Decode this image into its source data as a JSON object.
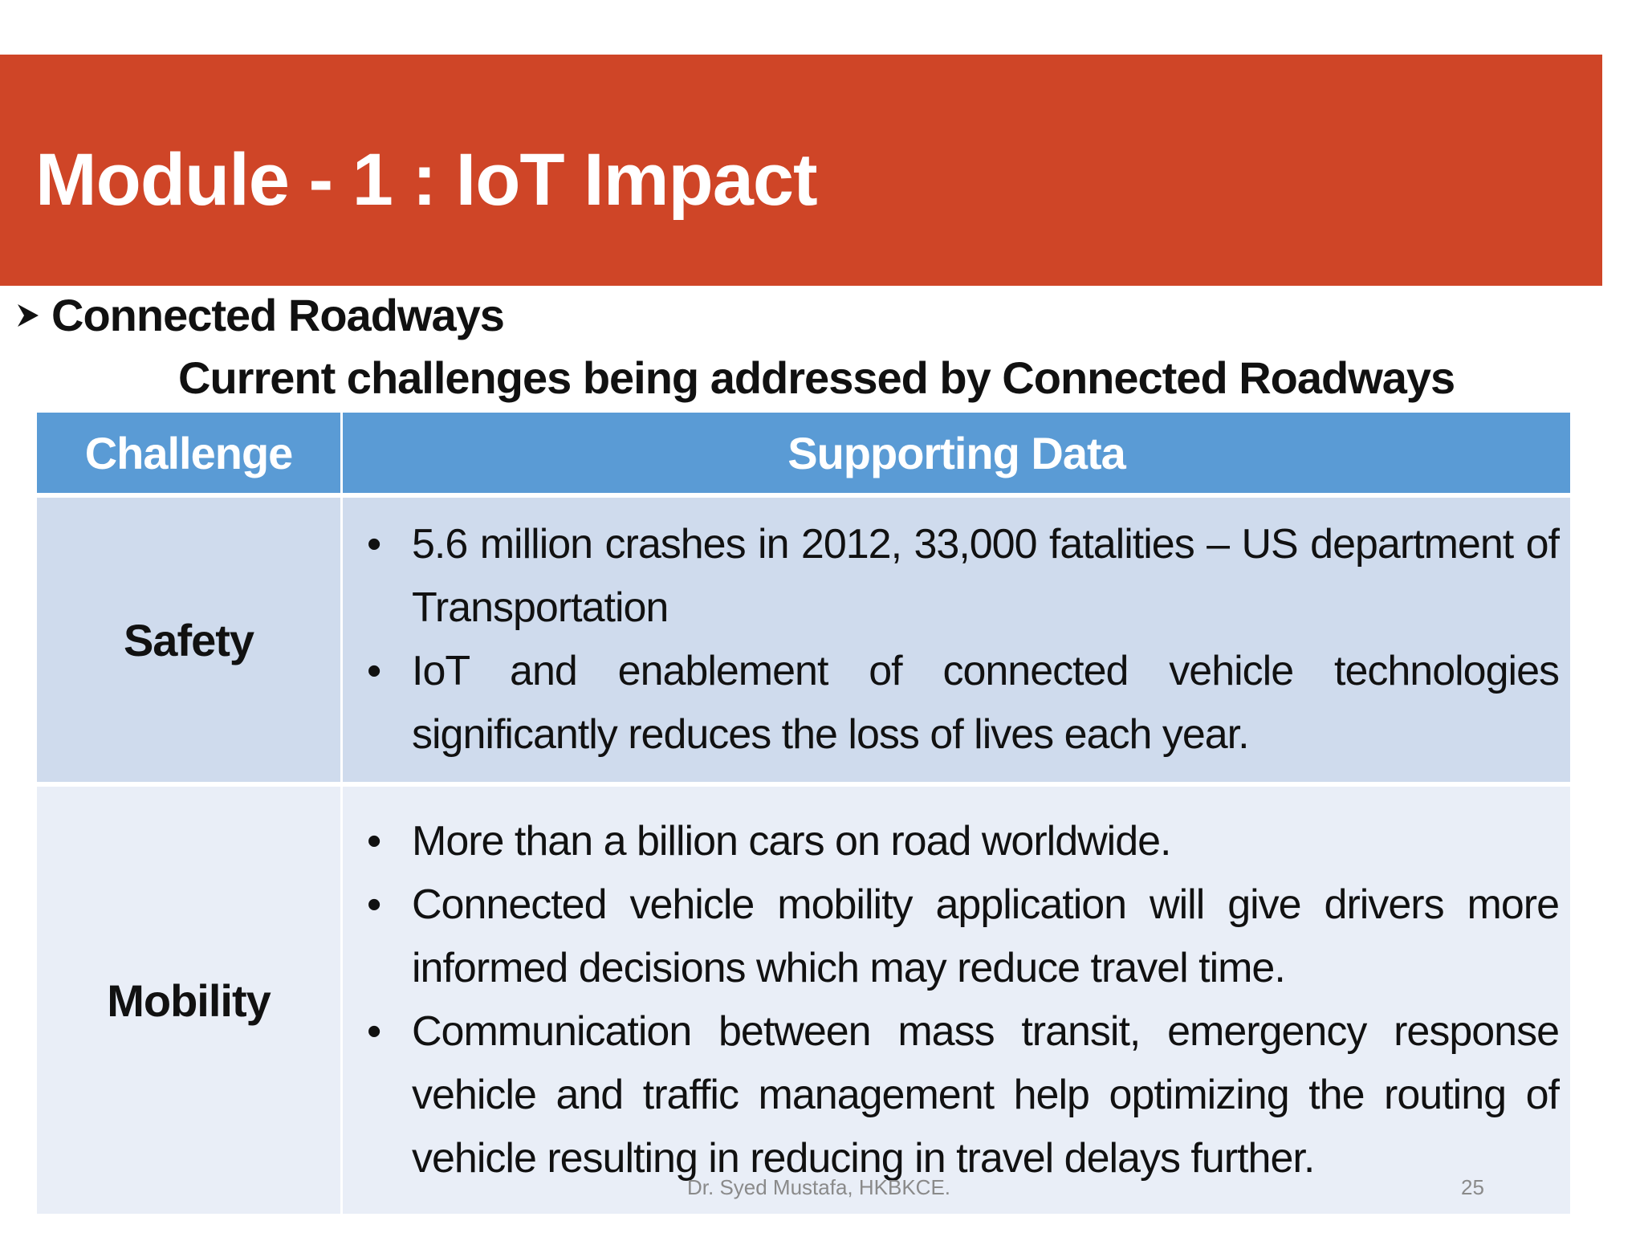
{
  "slide": {
    "title": "Module - 1 : IoT Impact",
    "section_heading": "Connected Roadways",
    "table_caption": "Current challenges being addressed by Connected Roadways",
    "colors": {
      "title_bar": "#cf4527",
      "table_header": "#5a9bd5",
      "row_safety": "#cfdbed",
      "row_mobility": "#e9eef7"
    }
  },
  "table": {
    "headers": [
      "Challenge",
      "Supporting Data"
    ],
    "rows": [
      {
        "challenge": "Safety",
        "points": [
          "5.6 million crashes in 2012, 33,000 fatalities – US department of Transportation",
          "IoT and enablement of connected vehicle technologies significantly reduces the loss of lives each year."
        ]
      },
      {
        "challenge": "Mobility",
        "points": [
          "More than a billion cars on road worldwide.",
          "Connected vehicle mobility application will give drivers more informed decisions which may reduce travel time.",
          "Communication between mass transit, emergency response vehicle and traffic management help optimizing the routing of vehicle resulting in reducing in travel delays further."
        ]
      }
    ]
  },
  "footer": {
    "author": "Dr. Syed Mustafa, HKBKCE.",
    "page_number": "25"
  },
  "icons": {
    "section_bullet": "arrow-bullet-icon",
    "list_bullet": "•"
  }
}
